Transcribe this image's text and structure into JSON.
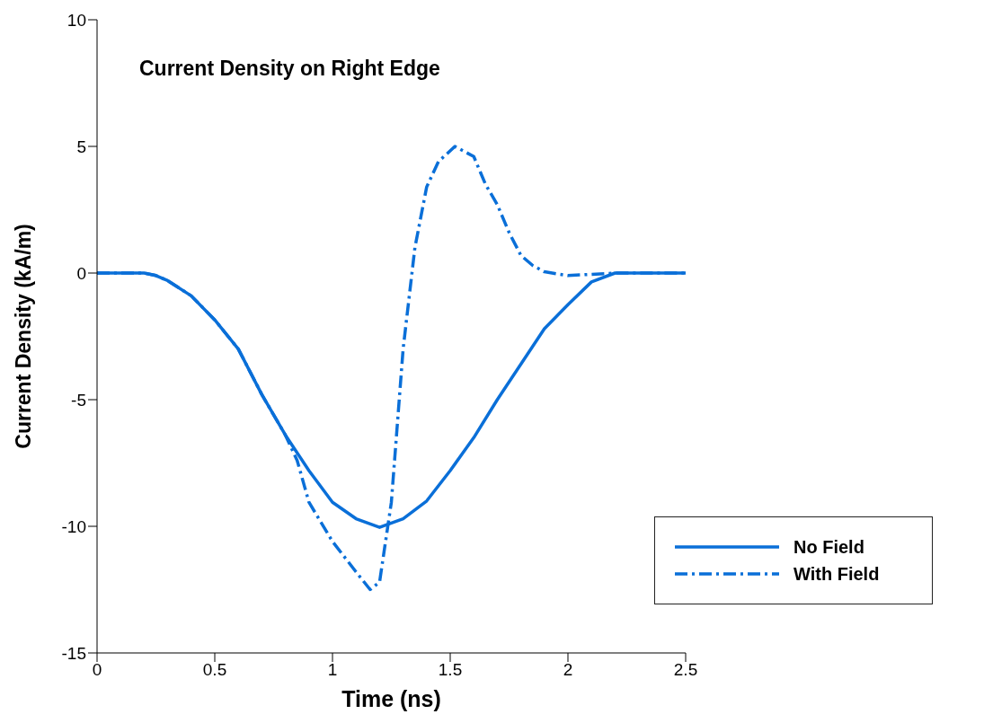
{
  "chart_data": {
    "type": "line",
    "title": "Current Density on Right Edge",
    "xlabel": "Time (ns)",
    "ylabel": "Current Density (kA/m)",
    "xlim": [
      0,
      2.5
    ],
    "xticks": [
      0,
      0.5,
      1,
      1.5,
      2,
      2.5
    ],
    "ylim": [
      -15,
      10
    ],
    "yticks": [
      -15,
      -10,
      -5,
      0,
      5,
      10
    ],
    "grid": false,
    "legend": "bottom right",
    "marker": "none",
    "series": [
      {
        "name": "No Field",
        "color": "#0a6fd8",
        "line_style": "solid",
        "x": [
          0,
          0.2,
          0.25,
          0.3,
          0.4,
          0.5,
          0.6,
          0.7,
          0.8,
          0.9,
          1.0,
          1.1,
          1.2,
          1.3,
          1.4,
          1.5,
          1.6,
          1.7,
          1.8,
          1.9,
          2.0,
          2.1,
          2.2,
          2.5
        ],
        "values": [
          0,
          0,
          -0.1,
          -0.3,
          -0.9,
          -1.85,
          -3.0,
          -4.8,
          -6.4,
          -7.8,
          -9.05,
          -9.7,
          -10.04,
          -9.7,
          -9.0,
          -7.8,
          -6.5,
          -5.0,
          -3.6,
          -2.2,
          -1.25,
          -0.35,
          0,
          0
        ]
      },
      {
        "name": "With Field",
        "color": "#0a6fd8",
        "line_style": "dashed",
        "x": [
          0,
          0.2,
          0.25,
          0.3,
          0.4,
          0.5,
          0.6,
          0.7,
          0.8,
          0.85,
          0.9,
          1.0,
          1.1,
          1.16,
          1.2,
          1.25,
          1.3,
          1.35,
          1.4,
          1.45,
          1.52,
          1.6,
          1.65,
          1.7,
          1.75,
          1.8,
          1.85,
          1.9,
          2.0,
          2.1,
          2.2,
          2.5
        ],
        "values": [
          0,
          0,
          -0.1,
          -0.3,
          -0.9,
          -1.85,
          -3.0,
          -4.8,
          -6.4,
          -7.4,
          -9.05,
          -10.6,
          -11.8,
          -12.5,
          -12.2,
          -9.05,
          -3.0,
          1.0,
          3.4,
          4.4,
          5.0,
          4.6,
          3.5,
          2.7,
          1.6,
          0.7,
          0.3,
          0.05,
          -0.1,
          -0.05,
          0,
          0
        ]
      }
    ]
  }
}
